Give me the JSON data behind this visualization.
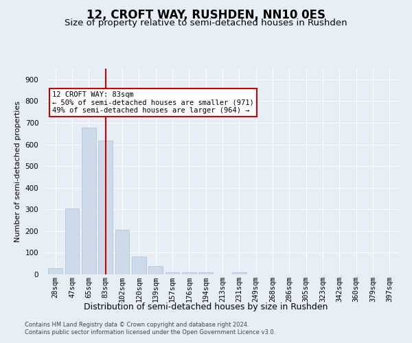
{
  "title": "12, CROFT WAY, RUSHDEN, NN10 0ES",
  "subtitle": "Size of property relative to semi-detached houses in Rushden",
  "xlabel": "Distribution of semi-detached houses by size in Rushden",
  "ylabel": "Number of semi-detached properties",
  "categories": [
    "28sqm",
    "47sqm",
    "65sqm",
    "83sqm",
    "102sqm",
    "120sqm",
    "139sqm",
    "157sqm",
    "176sqm",
    "194sqm",
    "213sqm",
    "231sqm",
    "249sqm",
    "268sqm",
    "286sqm",
    "305sqm",
    "323sqm",
    "342sqm",
    "360sqm",
    "379sqm",
    "397sqm"
  ],
  "values": [
    27,
    303,
    677,
    617,
    207,
    82,
    37,
    11,
    11,
    8,
    0,
    8,
    0,
    0,
    0,
    0,
    0,
    0,
    0,
    0,
    0
  ],
  "bar_color": "#ccdaea",
  "bar_edge_color": "#aabfce",
  "highlight_index": 3,
  "highlight_line_color": "#cc0000",
  "annotation_text": "12 CROFT WAY: 83sqm\n← 50% of semi-detached houses are smaller (971)\n49% of semi-detached houses are larger (964) →",
  "annotation_box_color": "#ffffff",
  "annotation_box_edge": "#cc0000",
  "ylim": [
    0,
    950
  ],
  "yticks": [
    0,
    100,
    200,
    300,
    400,
    500,
    600,
    700,
    800,
    900
  ],
  "title_fontsize": 12,
  "subtitle_fontsize": 9.5,
  "xlabel_fontsize": 9,
  "ylabel_fontsize": 8,
  "tick_fontsize": 7.5,
  "footer_line1": "Contains HM Land Registry data © Crown copyright and database right 2024.",
  "footer_line2": "Contains public sector information licensed under the Open Government Licence v3.0.",
  "background_color": "#e8eef5",
  "plot_bg_color": "#e8eef5"
}
